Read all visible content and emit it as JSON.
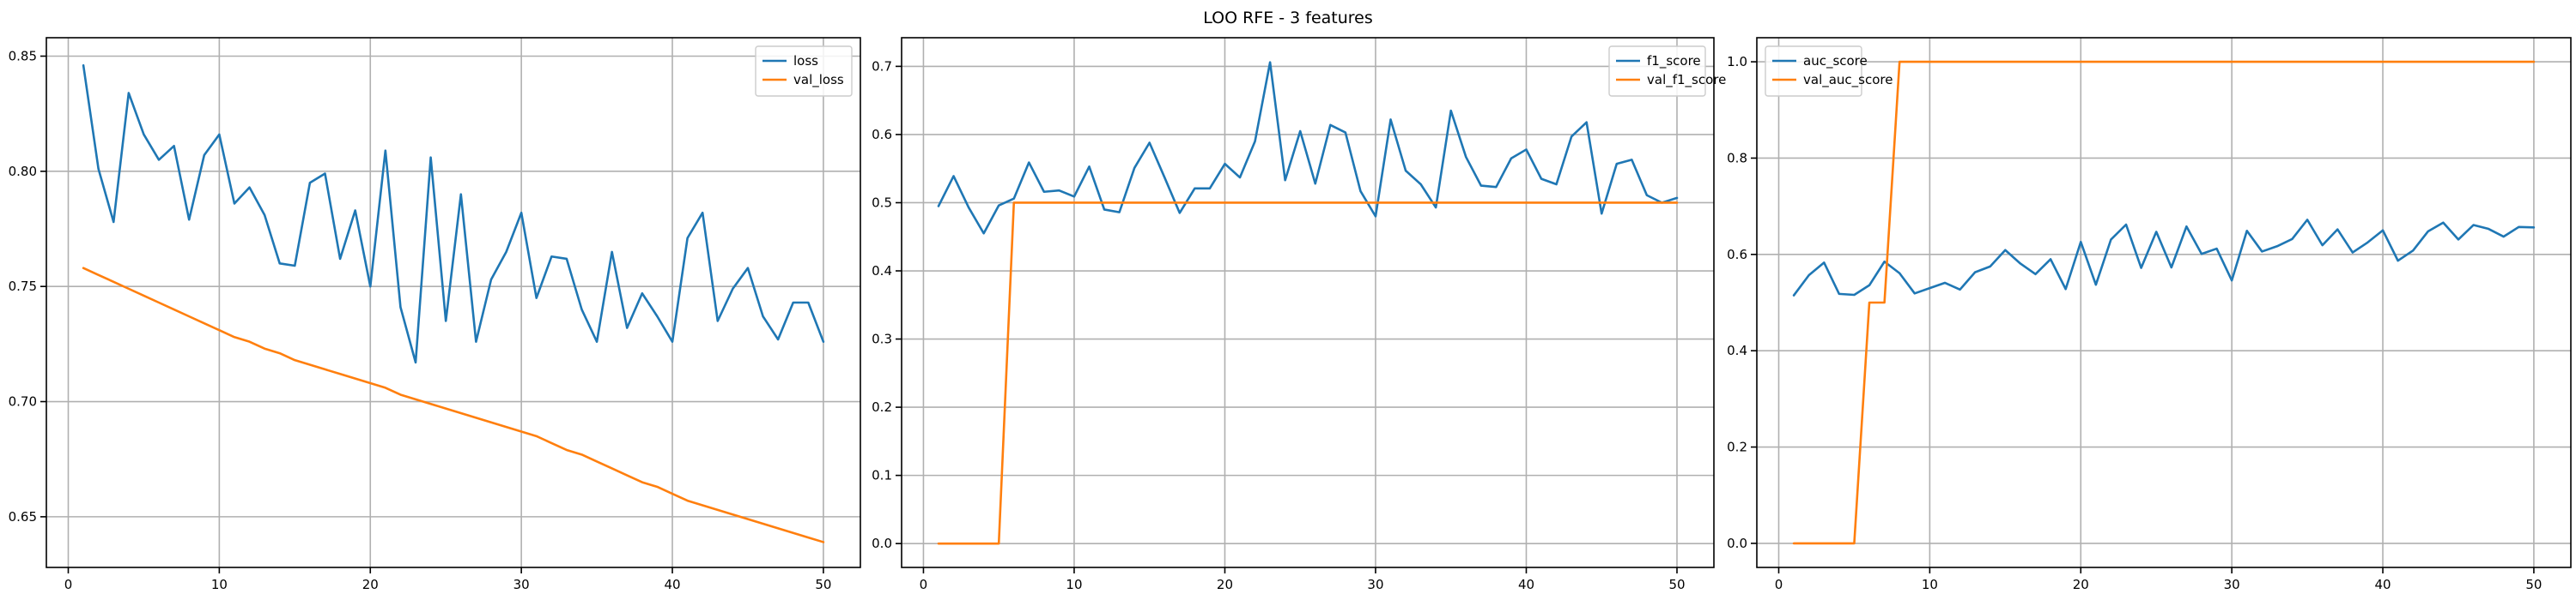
{
  "figure": {
    "title": "LOO RFE - 3 features"
  },
  "chart_data": [
    {
      "type": "line",
      "title": "",
      "xlabel": "",
      "ylabel": "",
      "xlim": [
        -1.45,
        52.45
      ],
      "ylim": [
        0.628,
        0.858
      ],
      "xticks": [
        0,
        10,
        20,
        30,
        40,
        50
      ],
      "yticks": [
        0.65,
        0.7,
        0.75,
        0.8,
        0.85
      ],
      "ytick_labels": [
        "0.65",
        "0.70",
        "0.75",
        "0.80",
        "0.85"
      ],
      "grid": true,
      "legend": "top-right",
      "series": [
        {
          "name": "loss",
          "color": "#1f77b4",
          "x": [
            1,
            2,
            3,
            4,
            5,
            6,
            7,
            8,
            9,
            10,
            11,
            12,
            13,
            14,
            15,
            16,
            17,
            18,
            19,
            20,
            21,
            22,
            23,
            24,
            25,
            26,
            27,
            28,
            29,
            30,
            31,
            32,
            33,
            34,
            35,
            36,
            37,
            38,
            39,
            40,
            41,
            42,
            43,
            44,
            45,
            46,
            47,
            48,
            49,
            50
          ],
          "y": [
            0.846,
            0.801,
            0.778,
            0.834,
            0.816,
            0.805,
            0.811,
            0.779,
            0.807,
            0.816,
            0.786,
            0.793,
            0.781,
            0.76,
            0.759,
            0.795,
            0.799,
            0.762,
            0.783,
            0.75,
            0.809,
            0.741,
            0.717,
            0.806,
            0.735,
            0.79,
            0.726,
            0.753,
            0.765,
            0.782,
            0.745,
            0.763,
            0.762,
            0.74,
            0.726,
            0.765,
            0.732,
            0.747,
            0.737,
            0.726,
            0.771,
            0.782,
            0.735,
            0.749,
            0.758,
            0.737,
            0.727,
            0.743,
            0.743,
            0.726
          ]
        },
        {
          "name": "val_loss",
          "color": "#ff7f0e",
          "x": [
            1,
            2,
            3,
            4,
            5,
            6,
            7,
            8,
            9,
            10,
            11,
            12,
            13,
            14,
            15,
            16,
            17,
            18,
            19,
            20,
            21,
            22,
            23,
            24,
            25,
            26,
            27,
            28,
            29,
            30,
            31,
            32,
            33,
            34,
            35,
            36,
            37,
            38,
            39,
            40,
            41,
            42,
            43,
            44,
            45,
            46,
            47,
            48,
            49,
            50
          ],
          "y": [
            0.758,
            0.755,
            0.752,
            0.749,
            0.746,
            0.743,
            0.74,
            0.737,
            0.734,
            0.731,
            0.728,
            0.726,
            0.723,
            0.721,
            0.718,
            0.716,
            0.714,
            0.712,
            0.71,
            0.708,
            0.706,
            0.703,
            0.701,
            0.699,
            0.697,
            0.695,
            0.693,
            0.691,
            0.689,
            0.687,
            0.685,
            0.682,
            0.679,
            0.677,
            0.674,
            0.671,
            0.668,
            0.665,
            0.663,
            0.66,
            0.657,
            0.655,
            0.653,
            0.651,
            0.649,
            0.647,
            0.645,
            0.643,
            0.641,
            0.639
          ]
        }
      ]
    },
    {
      "type": "line",
      "title": "",
      "xlabel": "",
      "ylabel": "",
      "xlim": [
        -1.45,
        52.45
      ],
      "ylim": [
        -0.035,
        0.742
      ],
      "xticks": [
        0,
        10,
        20,
        30,
        40,
        50
      ],
      "yticks": [
        0.0,
        0.1,
        0.2,
        0.3,
        0.4,
        0.5,
        0.6,
        0.7
      ],
      "ytick_labels": [
        "0.0",
        "0.1",
        "0.2",
        "0.3",
        "0.4",
        "0.5",
        "0.6",
        "0.7"
      ],
      "grid": true,
      "legend": "top-right",
      "series": [
        {
          "name": "f1_score",
          "color": "#1f77b4",
          "x": [
            1,
            2,
            3,
            4,
            5,
            6,
            7,
            8,
            9,
            10,
            11,
            12,
            13,
            14,
            15,
            16,
            17,
            18,
            19,
            20,
            21,
            22,
            23,
            24,
            25,
            26,
            27,
            28,
            29,
            30,
            31,
            32,
            33,
            34,
            35,
            36,
            37,
            38,
            39,
            40,
            41,
            42,
            43,
            44,
            45,
            46,
            47,
            48,
            49,
            50
          ],
          "y": [
            0.495,
            0.539,
            0.493,
            0.455,
            0.496,
            0.506,
            0.559,
            0.516,
            0.518,
            0.509,
            0.553,
            0.49,
            0.486,
            0.551,
            0.588,
            0.537,
            0.485,
            0.521,
            0.521,
            0.557,
            0.537,
            0.59,
            0.706,
            0.533,
            0.605,
            0.528,
            0.614,
            0.603,
            0.517,
            0.48,
            0.622,
            0.547,
            0.527,
            0.493,
            0.635,
            0.567,
            0.525,
            0.523,
            0.565,
            0.578,
            0.535,
            0.527,
            0.597,
            0.618,
            0.484,
            0.557,
            0.563,
            0.511,
            0.5,
            0.507
          ]
        },
        {
          "name": "val_f1_score",
          "color": "#ff7f0e",
          "x": [
            1,
            2,
            3,
            4,
            5,
            6,
            7,
            8,
            9,
            10,
            11,
            12,
            13,
            14,
            15,
            16,
            17,
            18,
            19,
            20,
            21,
            22,
            23,
            24,
            25,
            26,
            27,
            28,
            29,
            30,
            31,
            32,
            33,
            34,
            35,
            36,
            37,
            38,
            39,
            40,
            41,
            42,
            43,
            44,
            45,
            46,
            47,
            48,
            49,
            50
          ],
          "y": [
            0,
            0,
            0,
            0,
            0,
            0.5,
            0.5,
            0.5,
            0.5,
            0.5,
            0.5,
            0.5,
            0.5,
            0.5,
            0.5,
            0.5,
            0.5,
            0.5,
            0.5,
            0.5,
            0.5,
            0.5,
            0.5,
            0.5,
            0.5,
            0.5,
            0.5,
            0.5,
            0.5,
            0.5,
            0.5,
            0.5,
            0.5,
            0.5,
            0.5,
            0.5,
            0.5,
            0.5,
            0.5,
            0.5,
            0.5,
            0.5,
            0.5,
            0.5,
            0.5,
            0.5,
            0.5,
            0.5,
            0.5,
            0.5
          ]
        }
      ]
    },
    {
      "type": "line",
      "title": "",
      "xlabel": "",
      "ylabel": "",
      "xlim": [
        -1.45,
        52.45
      ],
      "ylim": [
        -0.05,
        1.05
      ],
      "xticks": [
        0,
        10,
        20,
        30,
        40,
        50
      ],
      "yticks": [
        0.0,
        0.2,
        0.4,
        0.6,
        0.8,
        1.0
      ],
      "ytick_labels": [
        "0.0",
        "0.2",
        "0.4",
        "0.6",
        "0.8",
        "1.0"
      ],
      "grid": true,
      "legend": "top-left",
      "series": [
        {
          "name": "auc_score",
          "color": "#1f77b4",
          "x": [
            1,
            2,
            3,
            4,
            5,
            6,
            7,
            8,
            9,
            10,
            11,
            12,
            13,
            14,
            15,
            16,
            17,
            18,
            19,
            20,
            21,
            22,
            23,
            24,
            25,
            26,
            27,
            28,
            29,
            30,
            31,
            32,
            33,
            34,
            35,
            36,
            37,
            38,
            39,
            40,
            41,
            42,
            43,
            44,
            45,
            46,
            47,
            48,
            49,
            50
          ],
          "y": [
            0.515,
            0.557,
            0.583,
            0.518,
            0.516,
            0.536,
            0.585,
            0.561,
            0.519,
            0.53,
            0.541,
            0.527,
            0.563,
            0.575,
            0.609,
            0.581,
            0.559,
            0.59,
            0.528,
            0.626,
            0.537,
            0.631,
            0.662,
            0.572,
            0.647,
            0.573,
            0.658,
            0.601,
            0.612,
            0.546,
            0.649,
            0.606,
            0.617,
            0.632,
            0.672,
            0.619,
            0.652,
            0.604,
            0.625,
            0.65,
            0.587,
            0.608,
            0.648,
            0.666,
            0.631,
            0.661,
            0.653,
            0.637,
            0.657,
            0.656
          ]
        },
        {
          "name": "val_auc_score",
          "color": "#ff7f0e",
          "x": [
            1,
            2,
            3,
            4,
            5,
            6,
            7,
            8,
            9,
            10,
            11,
            12,
            13,
            14,
            15,
            16,
            17,
            18,
            19,
            20,
            21,
            22,
            23,
            24,
            25,
            26,
            27,
            28,
            29,
            30,
            31,
            32,
            33,
            34,
            35,
            36,
            37,
            38,
            39,
            40,
            41,
            42,
            43,
            44,
            45,
            46,
            47,
            48,
            49,
            50
          ],
          "y": [
            0,
            0,
            0,
            0,
            0,
            0.5,
            0.5,
            1,
            1,
            1,
            1,
            1,
            1,
            1,
            1,
            1,
            1,
            1,
            1,
            1,
            1,
            1,
            1,
            1,
            1,
            1,
            1,
            1,
            1,
            1,
            1,
            1,
            1,
            1,
            1,
            1,
            1,
            1,
            1,
            1,
            1,
            1,
            1,
            1,
            1,
            1,
            1,
            1,
            1,
            1
          ]
        }
      ]
    }
  ]
}
